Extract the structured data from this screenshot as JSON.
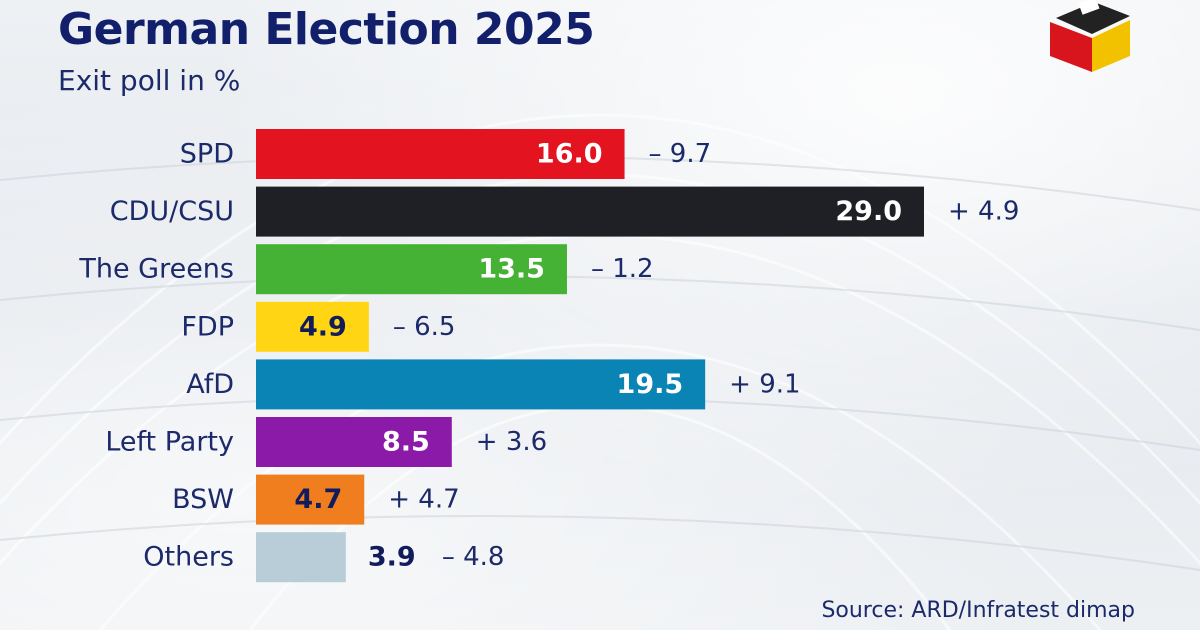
{
  "header": {
    "title": "German Election 2025",
    "subtitle": "Exit poll in %"
  },
  "footer": {
    "source": "Source: ARD/Infratest dimap"
  },
  "colors": {
    "title": "#12206b",
    "label": "#1c2a6a",
    "logo_black": "#222222",
    "logo_red": "#d8141c",
    "logo_gold": "#f2c200"
  },
  "chart_data": {
    "type": "bar",
    "orientation": "horizontal",
    "title": "German Election 2025",
    "subtitle": "Exit poll in %",
    "categories": [
      "SPD",
      "CDU/CSU",
      "The Greens",
      "FDP",
      "AfD",
      "Left Party",
      "BSW",
      "Others"
    ],
    "values": [
      16.0,
      29.0,
      13.5,
      4.9,
      19.5,
      8.5,
      4.7,
      3.9
    ],
    "value_labels": [
      "16.0",
      "29.0",
      "13.5",
      "4.9",
      "19.5",
      "8.5",
      "4.7",
      "3.9"
    ],
    "changes": [
      "– 9.7",
      "+ 4.9",
      "– 1.2",
      "– 6.5",
      "+ 9.1",
      "+ 3.6",
      "+ 4.7",
      "– 4.8"
    ],
    "colors": [
      "#e3131f",
      "#1f2025",
      "#45b235",
      "#ffd514",
      "#0a84b4",
      "#8c1aa8",
      "#f07d1e",
      "#b9cdd8"
    ],
    "label_colors": [
      "#ffffff",
      "#ffffff",
      "#ffffff",
      "#111c5c",
      "#ffffff",
      "#ffffff",
      "#111c5c",
      "#111c5c"
    ],
    "label_inside": [
      true,
      true,
      true,
      true,
      true,
      true,
      true,
      false
    ],
    "xlim": [
      0,
      29.0
    ],
    "grid": false,
    "legend": "none",
    "source": "Source: ARD/Infratest dimap"
  }
}
